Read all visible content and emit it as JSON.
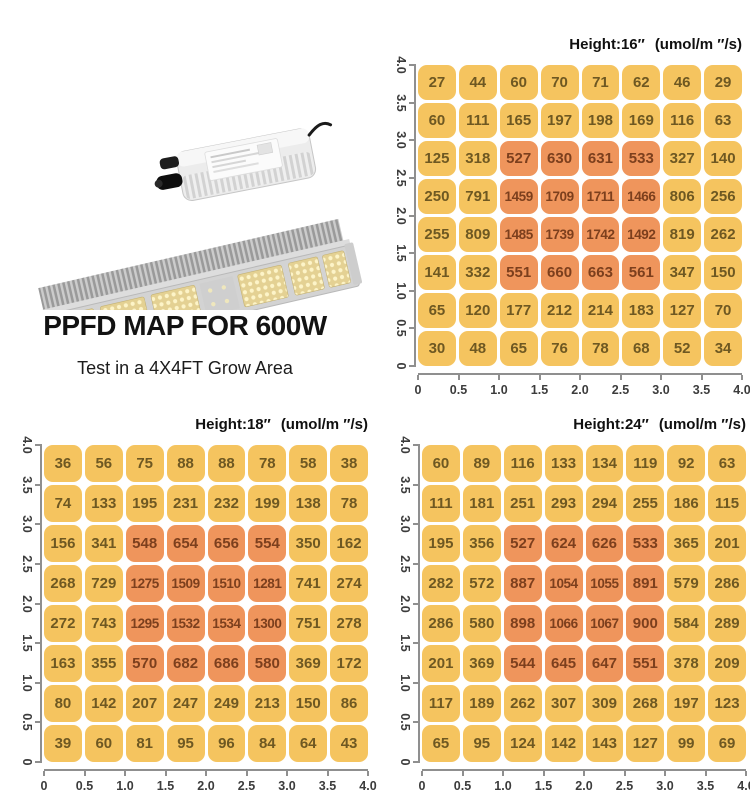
{
  "header": {
    "title": "PPFD MAP FOR 600W",
    "subtitle": "Test in a 4X4FT Grow Area"
  },
  "colors": {
    "cell_yellow": "#F5C45F",
    "cell_orange": "#EF955C",
    "cell_text": "#6E5822",
    "cell_text_highlight": "#7C3F1D",
    "axis": "#8F8F8F"
  },
  "chart_data": [
    {
      "type": "heatmap",
      "title_label": "Height:16″",
      "unit_label": "(umol/m ″/s)",
      "x_range": [
        0,
        4.0
      ],
      "y_range": [
        0,
        4.0
      ],
      "x_ticks": [
        "0",
        "0.5",
        "1.0",
        "1.5",
        "2.0",
        "2.5",
        "3.0",
        "3.5",
        "4.0"
      ],
      "y_ticks": [
        "4.0",
        "3.5",
        "3.0",
        "2.5",
        "2.0",
        "1.5",
        "1.0",
        "0.5",
        "0"
      ],
      "rows": [
        [
          27,
          44,
          60,
          70,
          71,
          62,
          46,
          29
        ],
        [
          60,
          111,
          165,
          197,
          198,
          169,
          116,
          63
        ],
        [
          125,
          318,
          527,
          630,
          631,
          533,
          327,
          140
        ],
        [
          250,
          791,
          1459,
          1709,
          1711,
          1466,
          806,
          256
        ],
        [
          255,
          809,
          1485,
          1739,
          1742,
          1492,
          819,
          262
        ],
        [
          141,
          332,
          551,
          660,
          663,
          561,
          347,
          150
        ],
        [
          65,
          120,
          177,
          212,
          214,
          183,
          127,
          70
        ],
        [
          30,
          48,
          65,
          76,
          78,
          68,
          52,
          34
        ]
      ],
      "highlight_block": {
        "row_start": 2,
        "row_end": 5,
        "col_start": 2,
        "col_end": 5
      }
    },
    {
      "type": "heatmap",
      "title_label": "Height:18″",
      "unit_label": "(umol/m ″/s)",
      "x_range": [
        0,
        4.0
      ],
      "y_range": [
        0,
        4.0
      ],
      "x_ticks": [
        "0",
        "0.5",
        "1.0",
        "1.5",
        "2.0",
        "2.5",
        "3.0",
        "3.5",
        "4.0"
      ],
      "y_ticks": [
        "4.0",
        "3.5",
        "3.0",
        "2.5",
        "2.0",
        "1.5",
        "1.0",
        "0.5",
        "0"
      ],
      "rows": [
        [
          36,
          56,
          75,
          88,
          88,
          78,
          58,
          38
        ],
        [
          74,
          133,
          195,
          231,
          232,
          199,
          138,
          78
        ],
        [
          156,
          341,
          548,
          654,
          656,
          554,
          350,
          162
        ],
        [
          268,
          729,
          1275,
          1509,
          1510,
          1281,
          741,
          274
        ],
        [
          272,
          743,
          1295,
          1532,
          1534,
          1300,
          751,
          278
        ],
        [
          163,
          355,
          570,
          682,
          686,
          580,
          369,
          172
        ],
        [
          80,
          142,
          207,
          247,
          249,
          213,
          150,
          86
        ],
        [
          39,
          60,
          81,
          95,
          96,
          84,
          64,
          43
        ]
      ],
      "highlight_block": {
        "row_start": 2,
        "row_end": 5,
        "col_start": 2,
        "col_end": 5
      }
    },
    {
      "type": "heatmap",
      "title_label": "Height:24″",
      "unit_label": "(umol/m ″/s)",
      "x_range": [
        0,
        4.0
      ],
      "y_range": [
        0,
        4.0
      ],
      "x_ticks": [
        "0",
        "0.5",
        "1.0",
        "1.5",
        "2.0",
        "2.5",
        "3.0",
        "3.5",
        "4.0"
      ],
      "y_ticks": [
        "4.0",
        "3.5",
        "3.0",
        "2.5",
        "2.0",
        "1.5",
        "1.0",
        "0.5",
        "0"
      ],
      "rows": [
        [
          60,
          89,
          116,
          133,
          134,
          119,
          92,
          63
        ],
        [
          111,
          181,
          251,
          293,
          294,
          255,
          186,
          115
        ],
        [
          195,
          356,
          527,
          624,
          626,
          533,
          365,
          201
        ],
        [
          282,
          572,
          887,
          1054,
          1055,
          891,
          579,
          286
        ],
        [
          286,
          580,
          898,
          1066,
          1067,
          900,
          584,
          289
        ],
        [
          201,
          369,
          544,
          645,
          647,
          551,
          378,
          209
        ],
        [
          117,
          189,
          262,
          307,
          309,
          268,
          197,
          123
        ],
        [
          65,
          95,
          124,
          142,
          143,
          127,
          99,
          69
        ]
      ],
      "highlight_block": {
        "row_start": 2,
        "row_end": 5,
        "col_start": 2,
        "col_end": 5
      }
    }
  ]
}
